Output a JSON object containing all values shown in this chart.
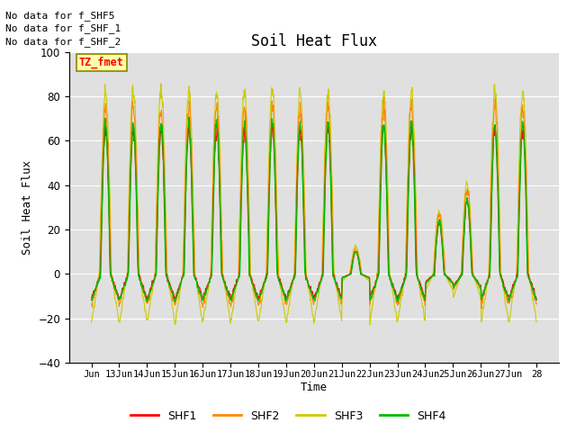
{
  "title": "Soil Heat Flux",
  "ylabel": "Soil Heat Flux",
  "xlabel": "Time",
  "ylim": [
    -40,
    100
  ],
  "yticks": [
    -40,
    -20,
    0,
    20,
    40,
    60,
    80,
    100
  ],
  "background_color": "#e0e0e0",
  "annotations": [
    "No data for f_SHF5",
    "No data for f_SHF_1",
    "No data for f_SHF_2"
  ],
  "tz_label": "TZ_fmet",
  "colors": {
    "SHF1": "#ff0000",
    "SHF2": "#ff8800",
    "SHF3": "#cccc00",
    "SHF4": "#00bb00"
  },
  "x_tick_labels": [
    "Jun",
    "13Jun",
    "14Jun",
    "15Jun",
    "16Jun",
    "17Jun",
    "18Jun",
    "19Jun",
    "20Jun",
    "21Jun",
    "22Jun",
    "23Jun",
    "24Jun",
    "25Jun",
    "26Jun",
    "27Jun",
    "28"
  ],
  "n_days": 16,
  "points_per_day": 96,
  "figsize": [
    6.4,
    4.8
  ],
  "dpi": 100
}
